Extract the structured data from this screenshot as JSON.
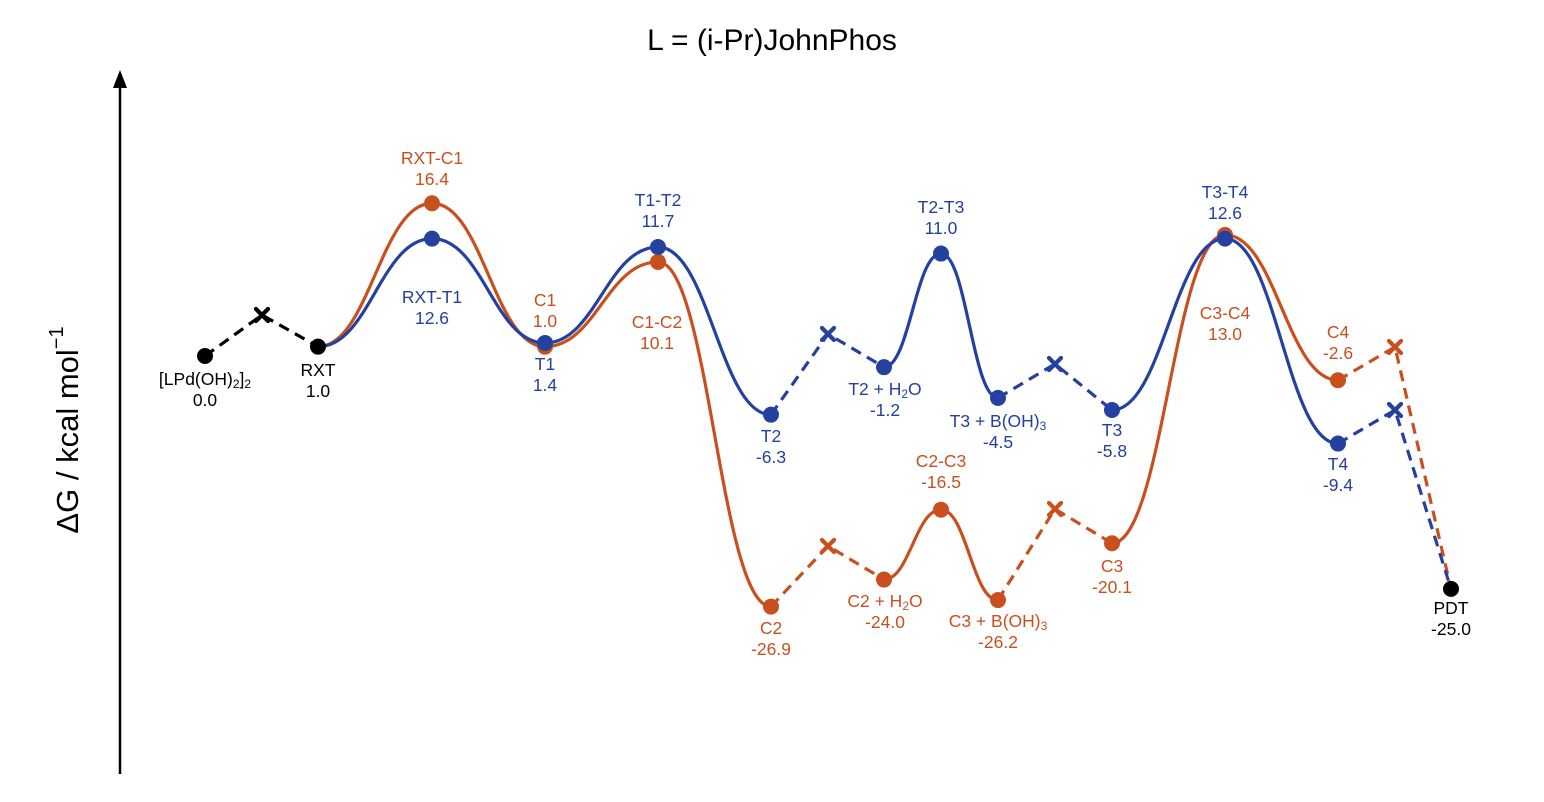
{
  "chart_data": {
    "type": "line",
    "title": "L = (i-Pr)JohnPhos",
    "ylabel": "ΔG / kcal mol",
    "ylabel_sup": "−1",
    "colors": {
      "shared": "#000000",
      "orange": "#C9501E",
      "blue": "#2441A0"
    },
    "common_points": [
      {
        "id": "LPd",
        "label": "[LPd(OH)2]2",
        "value": 0.0,
        "value_label": "0.0"
      },
      {
        "id": "RXT",
        "label": "RXT",
        "value": 1.0,
        "value_label": "1.0"
      },
      {
        "id": "PDT",
        "label": "PDT",
        "value": -25.0,
        "value_label": "-25.0"
      }
    ],
    "series": [
      {
        "key": "orange",
        "points": [
          {
            "label": "RXT-C1",
            "value": 16.4,
            "value_label": "16.4"
          },
          {
            "label": "C1",
            "value": 1.0,
            "value_label": "1.0"
          },
          {
            "label": "C1-C2",
            "value": 10.1,
            "value_label": "10.1"
          },
          {
            "label": "C2",
            "value": -26.9,
            "value_label": "-26.9"
          },
          {
            "label": "C2 + H2O",
            "value": -24.0,
            "value_label": "-24.0"
          },
          {
            "label": "C2-C3",
            "value": -16.5,
            "value_label": "-16.5"
          },
          {
            "label": "C3 + B(OH)3",
            "value": -26.2,
            "value_label": "-26.2"
          },
          {
            "label": "C3",
            "value": -20.1,
            "value_label": "-20.1"
          },
          {
            "label": "C3-C4",
            "value": 13.0,
            "value_label": "13.0"
          },
          {
            "label": "C4",
            "value": -2.6,
            "value_label": "-2.6"
          }
        ]
      },
      {
        "key": "blue",
        "points": [
          {
            "label": "RXT-T1",
            "value": 12.6,
            "value_label": "12.6"
          },
          {
            "label": "T1",
            "value": 1.4,
            "value_label": "1.4"
          },
          {
            "label": "T1-T2",
            "value": 11.7,
            "value_label": "11.7"
          },
          {
            "label": "T2",
            "value": -6.3,
            "value_label": "-6.3"
          },
          {
            "label": "T2 + H2O",
            "value": -1.2,
            "value_label": "-1.2"
          },
          {
            "label": "T2-T3",
            "value": 11.0,
            "value_label": "11.0"
          },
          {
            "label": "T3 + B(OH)3",
            "value": -4.5,
            "value_label": "-4.5"
          },
          {
            "label": "T3",
            "value": -5.8,
            "value_label": "-5.8"
          },
          {
            "label": "T3-T4",
            "value": 12.6,
            "value_label": "12.6"
          },
          {
            "label": "T4",
            "value": -9.4,
            "value_label": "-9.4"
          }
        ]
      }
    ]
  }
}
